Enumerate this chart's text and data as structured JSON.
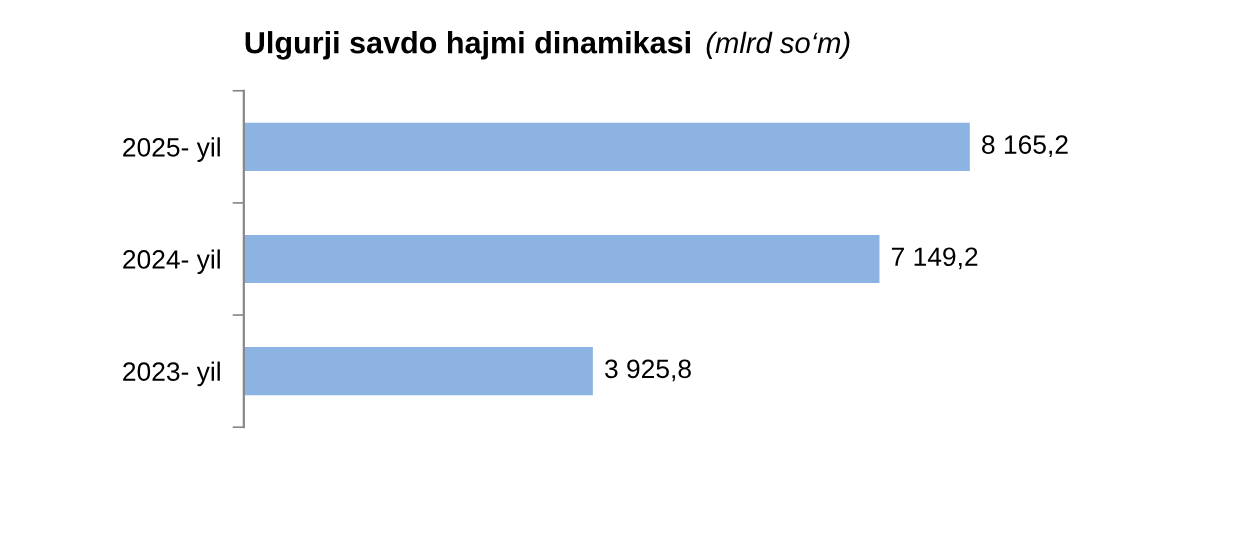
{
  "chart_data": {
    "type": "bar",
    "orientation": "horizontal",
    "title": "Ulgurji savdo hajmi dinamikasi",
    "subtitle": "(mlrd so‘m)",
    "categories": [
      "2025- yil",
      "2024- yil",
      "2023- yil"
    ],
    "values": [
      8165.2,
      7149.2,
      3925.8
    ],
    "value_labels": [
      "8 165,2",
      "7 149,2",
      "3 925,8"
    ],
    "color": "#8db3e2",
    "grid": false,
    "legend": false
  }
}
